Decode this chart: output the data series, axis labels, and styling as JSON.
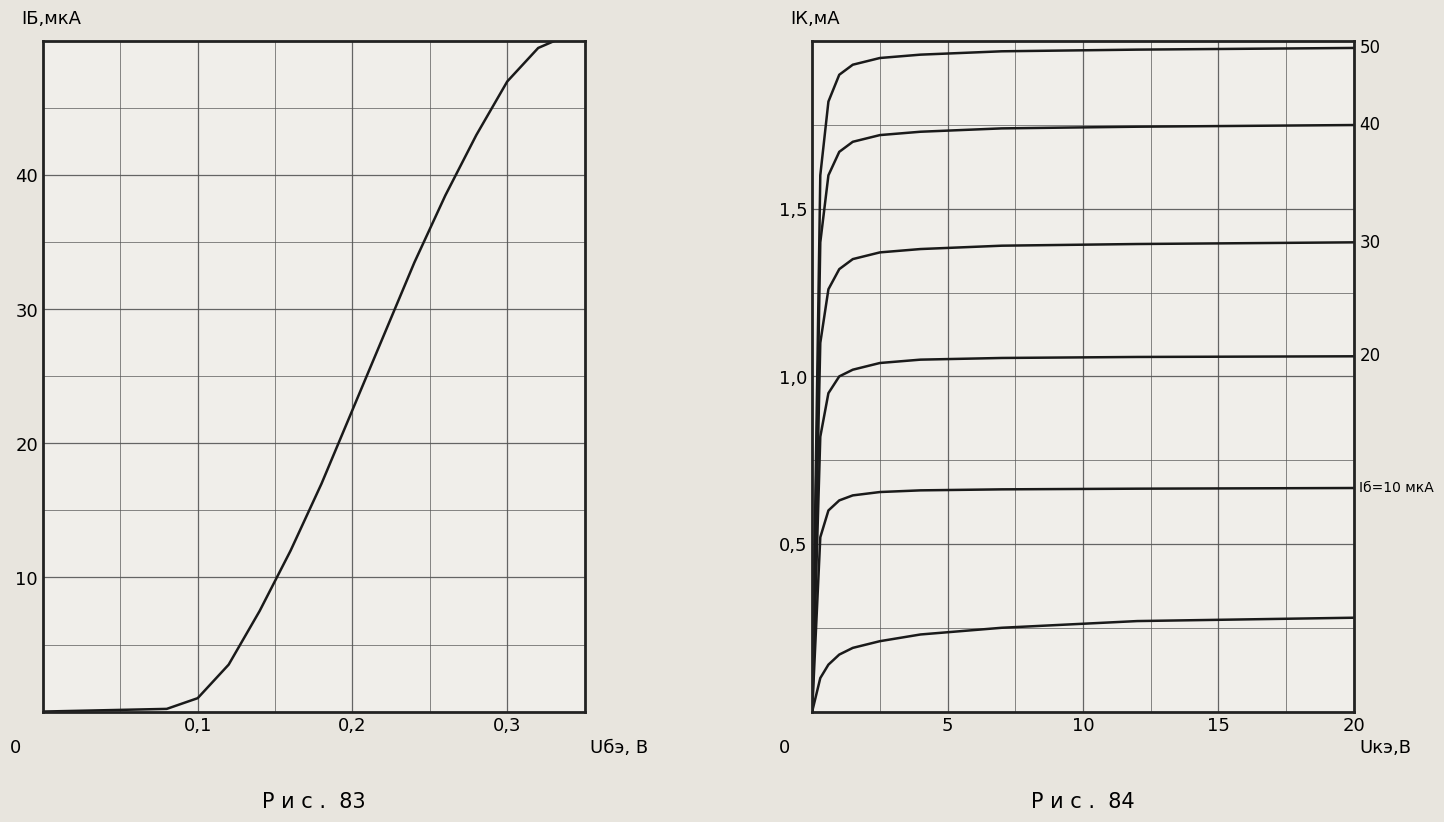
{
  "fig83": {
    "title": "Р и с .  83",
    "xlim": [
      0,
      0.35
    ],
    "ylim": [
      0,
      50
    ],
    "xticks": [
      0.1,
      0.2,
      0.3
    ],
    "yticks": [
      10,
      20,
      30,
      40
    ],
    "xtick_labels": [
      "0,1",
      "0,2",
      "0,3"
    ],
    "ytick_labels": [
      "10",
      "20",
      "30",
      "40"
    ],
    "xlabel_text": "Uбэ, В",
    "ylabel_text": "IБ,мкА",
    "curve_x": [
      0.0,
      0.08,
      0.1,
      0.12,
      0.14,
      0.16,
      0.18,
      0.2,
      0.22,
      0.24,
      0.26,
      0.28,
      0.3,
      0.32,
      0.34
    ],
    "curve_y": [
      0.0,
      0.2,
      1.0,
      3.5,
      7.5,
      12.0,
      17.0,
      22.5,
      28.0,
      33.5,
      38.5,
      43.0,
      47.0,
      49.5,
      50.5
    ],
    "plot_bg": "#f0eeea",
    "line_color": "#1a1a1a",
    "grid_color": "#555555",
    "border_color": "#222222"
  },
  "fig84": {
    "title": "Р и с .  84",
    "xlim": [
      0,
      20
    ],
    "ylim": [
      0,
      2.0
    ],
    "xticks": [
      5,
      10,
      15,
      20
    ],
    "yticks": [
      0.5,
      1.0,
      1.5
    ],
    "xtick_labels": [
      "5",
      "10",
      "15",
      "20"
    ],
    "ytick_labels": [
      "0,5",
      "1,0",
      "1,5"
    ],
    "xlabel_text": "Uкэ,В",
    "ylabel_text": "IК,мА",
    "curves": [
      {
        "label": "50",
        "x": [
          0,
          0.3,
          0.6,
          1.0,
          1.5,
          2.5,
          4.0,
          7.0,
          12.0,
          20.0
        ],
        "y": [
          0,
          1.6,
          1.82,
          1.9,
          1.93,
          1.95,
          1.96,
          1.97,
          1.975,
          1.98
        ]
      },
      {
        "label": "40",
        "x": [
          0,
          0.3,
          0.6,
          1.0,
          1.5,
          2.5,
          4.0,
          7.0,
          12.0,
          20.0
        ],
        "y": [
          0,
          1.4,
          1.6,
          1.67,
          1.7,
          1.72,
          1.73,
          1.74,
          1.745,
          1.75
        ]
      },
      {
        "label": "30",
        "x": [
          0,
          0.3,
          0.6,
          1.0,
          1.5,
          2.5,
          4.0,
          7.0,
          12.0,
          20.0
        ],
        "y": [
          0,
          1.1,
          1.26,
          1.32,
          1.35,
          1.37,
          1.38,
          1.39,
          1.395,
          1.4
        ]
      },
      {
        "label": "20",
        "x": [
          0,
          0.3,
          0.6,
          1.0,
          1.5,
          2.5,
          4.0,
          7.0,
          12.0,
          20.0
        ],
        "y": [
          0,
          0.82,
          0.95,
          1.0,
          1.02,
          1.04,
          1.05,
          1.055,
          1.058,
          1.06
        ]
      },
      {
        "label": "Iб=10 мкА",
        "x": [
          0,
          0.3,
          0.6,
          1.0,
          1.5,
          2.5,
          4.0,
          7.0,
          12.0,
          20.0
        ],
        "y": [
          0,
          0.52,
          0.6,
          0.63,
          0.645,
          0.655,
          0.66,
          0.663,
          0.665,
          0.667
        ]
      },
      {
        "label": "",
        "x": [
          0,
          0.3,
          0.6,
          1.0,
          1.5,
          2.5,
          4.0,
          7.0,
          12.0,
          20.0
        ],
        "y": [
          0,
          0.1,
          0.14,
          0.17,
          0.19,
          0.21,
          0.23,
          0.25,
          0.27,
          0.28
        ]
      }
    ],
    "plot_bg": "#f0eeea",
    "line_color": "#1a1a1a",
    "grid_color": "#555555",
    "border_color": "#222222"
  },
  "page_bg": "#e8e5de",
  "caption_fontsize": 15,
  "tick_fontsize": 13,
  "label_fontsize": 13
}
